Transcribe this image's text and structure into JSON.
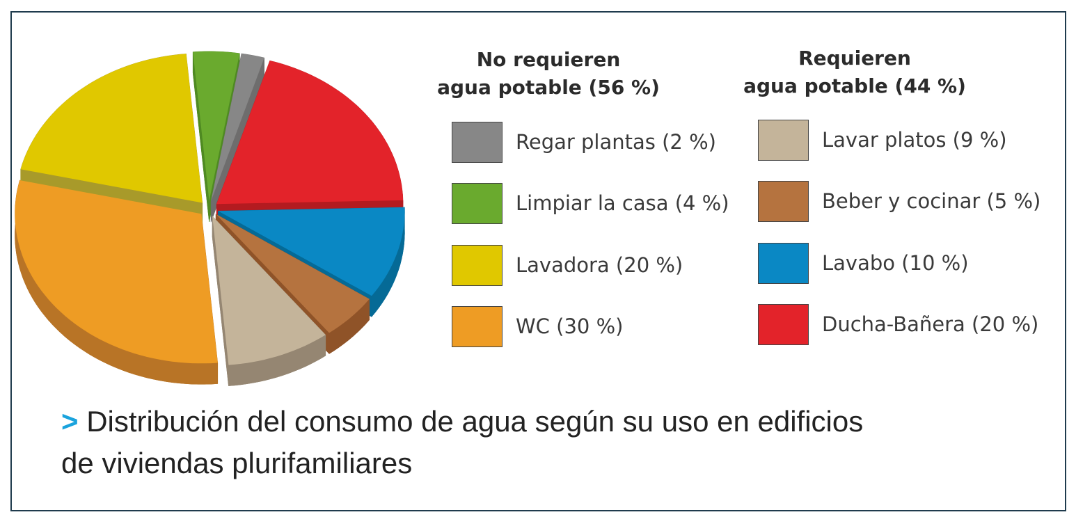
{
  "chart_data": {
    "type": "pie",
    "title": "Distribución del consumo de agua según su uso en edificios de viviendas plurifamiliares",
    "caption_marker": ">",
    "groups": [
      {
        "name": "No requieren agua potable (56 %)",
        "line1": "No requieren",
        "line2": "agua potable (56 %)",
        "items": [
          {
            "label": "Regar plantas (2 %)",
            "name": "Regar plantas",
            "value": 2,
            "color": "#878787",
            "shade": "#6e6d6d"
          },
          {
            "label": "Limpiar la casa (4 %)",
            "name": "Limpiar la casa",
            "value": 4,
            "color": "#6aaa2e",
            "shade": "#4f8a22"
          },
          {
            "label": "Lavadora (20 %)",
            "name": "Lavadora",
            "value": 20,
            "color": "#e0c800",
            "shade": "#a89a2a"
          },
          {
            "label": "WC (30 %)",
            "name": "WC",
            "value": 30,
            "color": "#ee9c24",
            "shade": "#b87426"
          }
        ]
      },
      {
        "name": "Requieren agua potable (44 %)",
        "line1": "Requieren",
        "line2": "agua potable (44 %)",
        "items": [
          {
            "label": "Lavar platos (9 %)",
            "name": "Lavar platos",
            "value": 9,
            "color": "#c4b49a",
            "shade": "#958672"
          },
          {
            "label": "Beber y cocinar (5 %)",
            "name": "Beber y cocinar",
            "value": 5,
            "color": "#b5733f",
            "shade": "#8f5328"
          },
          {
            "label": "Lavabo (10 %)",
            "name": "Lavabo",
            "value": 10,
            "color": "#0a88c4",
            "shade": "#056a96"
          },
          {
            "label": "Ducha-Bañera (20 %)",
            "name": "Ducha-Bañera",
            "value": 20,
            "color": "#e3232a",
            "shade": "#b31b20"
          }
        ]
      }
    ],
    "pie_order_clockwise_from_top": [
      "Limpiar la casa",
      "Regar plantas",
      "Ducha-Bañera",
      "Lavabo",
      "Beber y cocinar",
      "Lavar platos",
      "WC",
      "Lavadora"
    ],
    "style": "3d-exploded",
    "legend_placement": "right"
  },
  "caption": {
    "line1": "Distribución del consumo de agua según su uso en edificios",
    "line2": "de viviendas plurifamiliares"
  },
  "colors": {
    "frame": "#1f3b4d",
    "accent": "#1aa3dd"
  }
}
